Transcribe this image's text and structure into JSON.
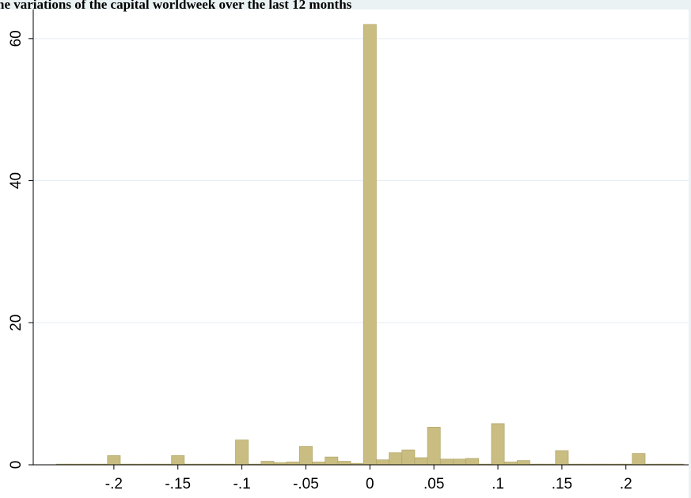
{
  "chart_data": {
    "type": "histogram",
    "title": "he variations of the capital worldweek over the last 12 months",
    "bins": [
      -0.245,
      -0.235,
      -0.225,
      -0.215,
      -0.205,
      -0.195,
      -0.185,
      -0.175,
      -0.165,
      -0.155,
      -0.145,
      -0.135,
      -0.125,
      -0.115,
      -0.105,
      -0.095,
      -0.085,
      -0.075,
      -0.065,
      -0.055,
      -0.045,
      -0.035,
      -0.025,
      -0.015,
      -0.005,
      0.005,
      0.015,
      0.025,
      0.035,
      0.045,
      0.055,
      0.065,
      0.075,
      0.085,
      0.095,
      0.105,
      0.115,
      0.125,
      0.135,
      0.145,
      0.155,
      0.165,
      0.175,
      0.185,
      0.195,
      0.205,
      0.215,
      0.225,
      0.235,
      0.245
    ],
    "values": [
      0.1,
      0.1,
      0.1,
      0.1,
      1.3,
      0.1,
      0.1,
      0.1,
      0.1,
      1.3,
      0.1,
      0.1,
      0.1,
      0.1,
      3.5,
      0.1,
      0.5,
      0.3,
      0.4,
      2.6,
      0.4,
      1.1,
      0.5,
      0.2,
      62,
      0.7,
      1.7,
      2.1,
      1.0,
      5.3,
      0.8,
      0.8,
      0.9,
      0.1,
      5.8,
      0.4,
      0.6,
      0.1,
      0.1,
      2.0,
      0.1,
      0.1,
      0.1,
      0.1,
      0.1,
      1.6,
      0.1,
      0.1,
      0.1
    ],
    "color": "#c9bd82",
    "xlim": [
      -0.263,
      0.249
    ],
    "ylim": [
      0,
      64.1
    ],
    "xticks": [
      {
        "value": -0.2,
        "label": "-.2"
      },
      {
        "value": -0.15,
        "label": "-.15"
      },
      {
        "value": -0.1,
        "label": "-.1"
      },
      {
        "value": -0.05,
        "label": "-.05"
      },
      0,
      {
        "value": 0.05,
        "label": ".05"
      },
      {
        "value": 0.1,
        "label": ".1"
      },
      {
        "value": 0.15,
        "label": ".15"
      },
      {
        "value": 0.2,
        "label": ".2"
      }
    ],
    "yticks": [
      0,
      20,
      40,
      60
    ],
    "grid": true
  }
}
